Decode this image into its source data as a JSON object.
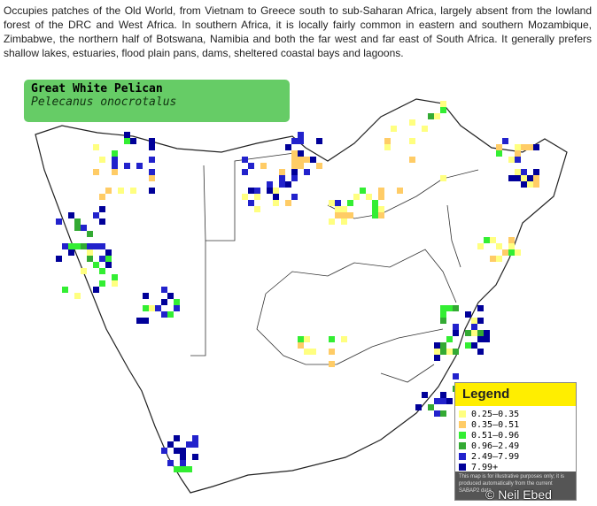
{
  "description": "Occupies patches of the Old World, from Vietnam to Greece south to sub-Saharan Africa, largely absent from the lowland forest of the DRC and West Africa. In southern Africa, it is locally fairly common in eastern and southern Mozambique, Zimbabwe, the northern half of Botswana, Namibia and both the far west and far east of South Africa. It generally prefers shallow lakes, estuaries, flood plain pans, dams, sheltered coastal bays and lagoons.",
  "species": {
    "common_name": "Great White Pelican",
    "scientific_name": "Pelecanus onocrotalus"
  },
  "legend": {
    "title": "Legend",
    "items": [
      {
        "label": "0.25–0.35",
        "color": "#ffff80"
      },
      {
        "label": "0.35–0.51",
        "color": "#ffcc66"
      },
      {
        "label": "0.51–0.96",
        "color": "#33ee33"
      },
      {
        "label": "0.96–2.49",
        "color": "#33aa33"
      },
      {
        "label": "2.49–7.99",
        "color": "#2222cc"
      },
      {
        "label": "7.99+",
        "color": "#000099"
      }
    ],
    "note": "This map is for illustrative purposes only; it is produced automatically from the current SABAP2 data"
  },
  "credit": "© Neil Ebed"
}
